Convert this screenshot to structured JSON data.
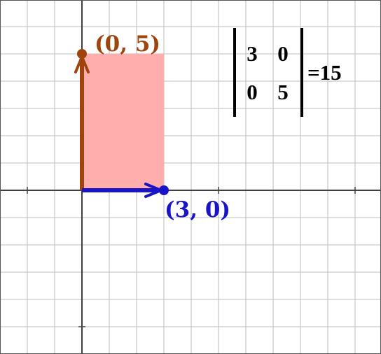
{
  "diagram": {
    "vector_u": {
      "label": "(0, 5)",
      "x": 0,
      "y": 5,
      "color": "#a0440e"
    },
    "vector_v": {
      "label": "(3, 0)",
      "x": 3,
      "y": 0,
      "color": "#1a14c8"
    },
    "parallelogram": {
      "fill": "#ffadad"
    },
    "matrix": {
      "rows": [
        [
          "3",
          "0"
        ],
        [
          "0",
          "5"
        ]
      ]
    },
    "determinant": {
      "text": "=15"
    },
    "colors": {
      "grid": "#bdbdbd",
      "axis": "#404040",
      "border": "#555555",
      "text": "#000000"
    }
  }
}
